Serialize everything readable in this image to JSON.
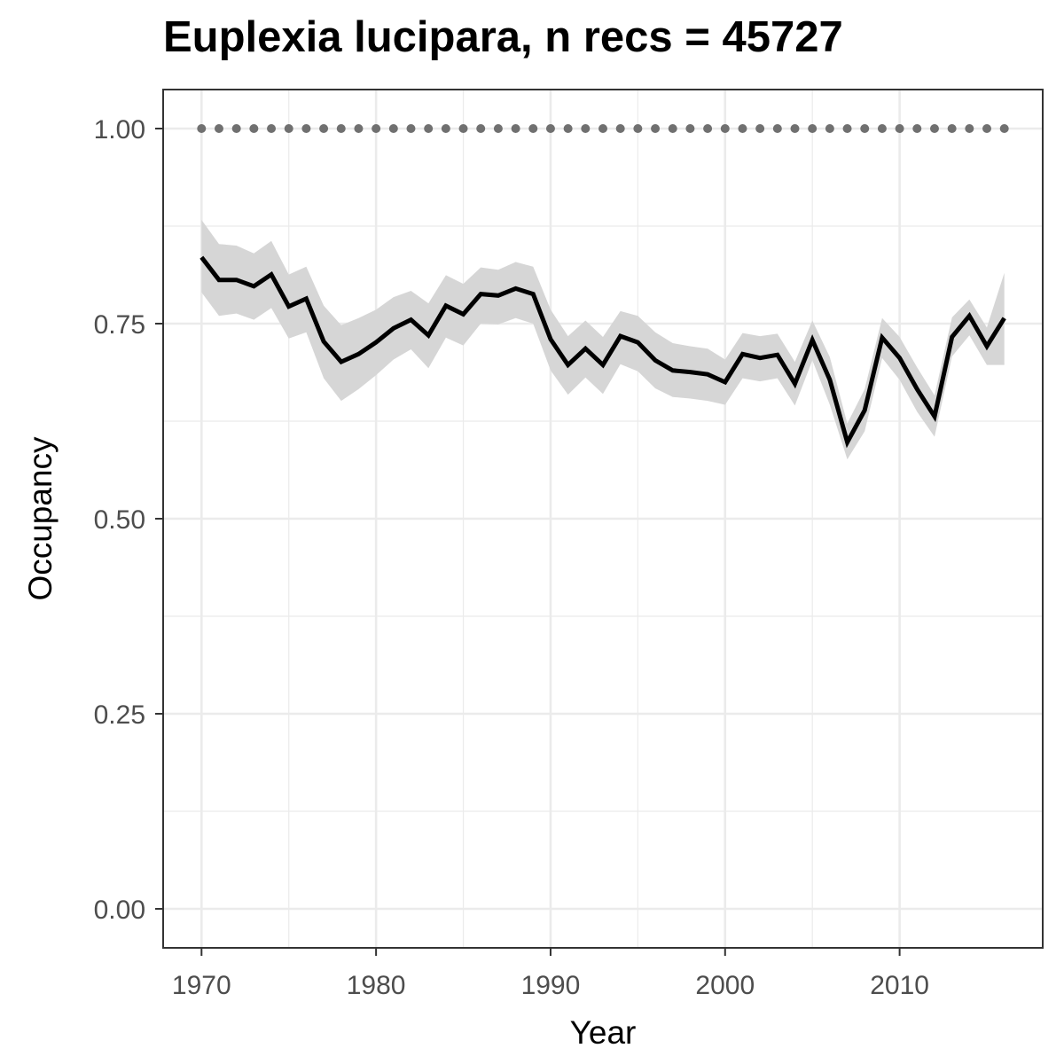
{
  "chart_data": {
    "type": "line",
    "title": "Euplexia lucipara, n recs = 45727",
    "xlabel": "Year",
    "ylabel": "Occupancy",
    "xlim": [
      1967.8,
      2018.2
    ],
    "ylim": [
      -0.05,
      1.05
    ],
    "x_ticks": [
      1970,
      1980,
      1990,
      2000,
      2010
    ],
    "x_tick_labels": [
      "1970",
      "1980",
      "1990",
      "2000",
      "2010"
    ],
    "y_ticks": [
      0,
      0.25,
      0.5,
      0.75,
      1.0
    ],
    "y_tick_labels": [
      "0.00",
      "0.25",
      "0.50",
      "0.75",
      "1.00"
    ],
    "grid": true,
    "colors": {
      "line": "#000000",
      "ribbon": "#d6d6d6",
      "dots": "#707070",
      "grid": "#ebebeb",
      "border": "#333333"
    },
    "series": [
      {
        "x": [
          1970,
          1971,
          1972,
          1973,
          1974,
          1975,
          1976,
          1977,
          1978,
          1979,
          1980,
          1981,
          1982,
          1983,
          1984,
          1985,
          1986,
          1987,
          1988,
          1989,
          1990,
          1991,
          1992,
          1993,
          1994,
          1995,
          1996,
          1997,
          1998,
          1999,
          2000,
          2001,
          2002,
          2003,
          2004,
          2005,
          2006,
          2007,
          2008,
          2009,
          2010,
          2011,
          2012,
          2013,
          2014,
          2015,
          2016
        ],
        "values": [
          0.835,
          0.806,
          0.806,
          0.798,
          0.813,
          0.772,
          0.782,
          0.727,
          0.701,
          0.711,
          0.726,
          0.744,
          0.755,
          0.735,
          0.773,
          0.762,
          0.788,
          0.786,
          0.795,
          0.788,
          0.73,
          0.697,
          0.718,
          0.697,
          0.734,
          0.726,
          0.703,
          0.69,
          0.688,
          0.685,
          0.675,
          0.711,
          0.706,
          0.71,
          0.673,
          0.729,
          0.678,
          0.598,
          0.639,
          0.732,
          0.706,
          0.666,
          0.631,
          0.733,
          0.76,
          0.721,
          0.757
        ],
        "lower": [
          0.79,
          0.76,
          0.763,
          0.755,
          0.77,
          0.731,
          0.739,
          0.68,
          0.651,
          0.666,
          0.684,
          0.704,
          0.717,
          0.693,
          0.732,
          0.722,
          0.75,
          0.749,
          0.757,
          0.75,
          0.69,
          0.659,
          0.681,
          0.66,
          0.698,
          0.689,
          0.667,
          0.656,
          0.654,
          0.651,
          0.646,
          0.68,
          0.676,
          0.68,
          0.645,
          0.703,
          0.646,
          0.576,
          0.612,
          0.706,
          0.678,
          0.637,
          0.605,
          0.708,
          0.735,
          0.697,
          0.697
        ],
        "upper": [
          0.883,
          0.852,
          0.85,
          0.84,
          0.856,
          0.813,
          0.823,
          0.773,
          0.748,
          0.757,
          0.768,
          0.784,
          0.792,
          0.776,
          0.812,
          0.801,
          0.822,
          0.819,
          0.829,
          0.823,
          0.768,
          0.734,
          0.754,
          0.733,
          0.766,
          0.76,
          0.739,
          0.725,
          0.721,
          0.718,
          0.704,
          0.738,
          0.734,
          0.737,
          0.701,
          0.754,
          0.707,
          0.622,
          0.666,
          0.757,
          0.733,
          0.694,
          0.658,
          0.758,
          0.781,
          0.745,
          0.815
        ]
      },
      {
        "x": [
          1970,
          1971,
          1972,
          1973,
          1974,
          1975,
          1976,
          1977,
          1978,
          1979,
          1980,
          1981,
          1982,
          1983,
          1984,
          1985,
          1986,
          1987,
          1988,
          1989,
          1990,
          1991,
          1992,
          1993,
          1994,
          1995,
          1996,
          1997,
          1998,
          1999,
          2000,
          2001,
          2002,
          2003,
          2004,
          2005,
          2006,
          2007,
          2008,
          2009,
          2010,
          2011,
          2012,
          2013,
          2014,
          2015,
          2016
        ],
        "values": [
          1,
          1,
          1,
          1,
          1,
          1,
          1,
          1,
          1,
          1,
          1,
          1,
          1,
          1,
          1,
          1,
          1,
          1,
          1,
          1,
          1,
          1,
          1,
          1,
          1,
          1,
          1,
          1,
          1,
          1,
          1,
          1,
          1,
          1,
          1,
          1,
          1,
          1,
          1,
          1,
          1,
          1,
          1,
          1,
          1,
          1,
          1
        ]
      }
    ]
  }
}
